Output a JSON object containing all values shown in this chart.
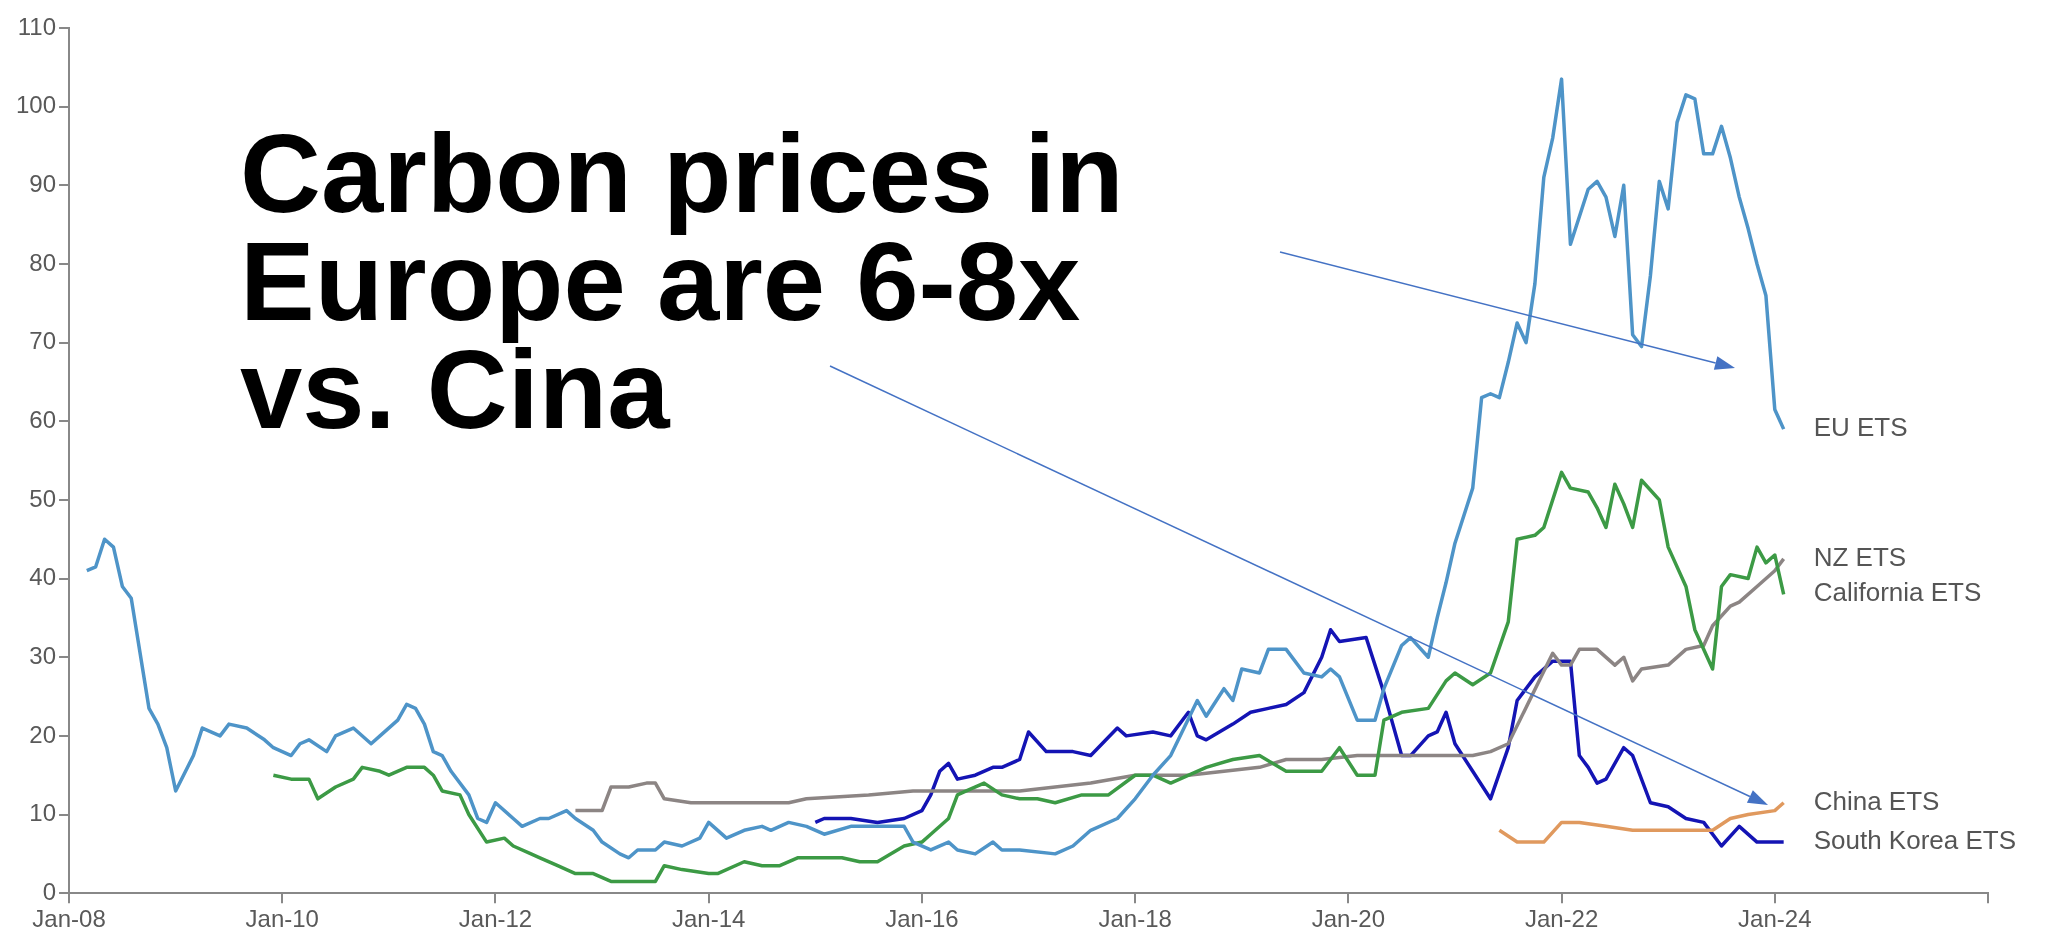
{
  "chart_data": {
    "type": "line",
    "title": "Carbon prices in Europe are 6-8x vs. Cina",
    "xlim": [
      "2008-01",
      "2026-01"
    ],
    "xticks": [
      {
        "value": "2008-01",
        "label": "Jan-08"
      },
      {
        "value": "2010-01",
        "label": "Jan-10"
      },
      {
        "value": "2012-01",
        "label": "Jan-12"
      },
      {
        "value": "2014-01",
        "label": "Jan-14"
      },
      {
        "value": "2016-01",
        "label": "Jan-16"
      },
      {
        "value": "2018-01",
        "label": "Jan-18"
      },
      {
        "value": "2020-01",
        "label": "Jan-20"
      },
      {
        "value": "2022-01",
        "label": "Jan-22"
      },
      {
        "value": "2024-01",
        "label": "Jan-24"
      },
      {
        "value": "2026-01",
        "label": null
      }
    ],
    "ylim": [
      0,
      110
    ],
    "yticks": [
      0,
      10,
      20,
      30,
      40,
      50,
      60,
      70,
      80,
      90,
      100,
      110
    ],
    "grid": false,
    "legend": false,
    "series": [
      {
        "name": "EU ETS",
        "color": "#4e94c8",
        "x": [
          "2008-03",
          "2008-04",
          "2008-05",
          "2008-06",
          "2008-07",
          "2008-08",
          "2008-10",
          "2008-11",
          "2008-12",
          "2009-01",
          "2009-03",
          "2009-04",
          "2009-06",
          "2009-07",
          "2009-09",
          "2009-11",
          "2009-12",
          "2010-02",
          "2010-03",
          "2010-04",
          "2010-06",
          "2010-07",
          "2010-09",
          "2010-11",
          "2010-12",
          "2011-02",
          "2011-03",
          "2011-04",
          "2011-05",
          "2011-06",
          "2011-07",
          "2011-08",
          "2011-10",
          "2011-11",
          "2011-12",
          "2012-01",
          "2012-03",
          "2012-04",
          "2012-06",
          "2012-07",
          "2012-09",
          "2012-10",
          "2012-12",
          "2013-01",
          "2013-03",
          "2013-04",
          "2013-05",
          "2013-07",
          "2013-08",
          "2013-10",
          "2013-12",
          "2014-01",
          "2014-03",
          "2014-05",
          "2014-07",
          "2014-08",
          "2014-10",
          "2014-12",
          "2015-02",
          "2015-05",
          "2015-08",
          "2015-11",
          "2015-12",
          "2016-02",
          "2016-04",
          "2016-05",
          "2016-07",
          "2016-09",
          "2016-10",
          "2016-12",
          "2017-04",
          "2017-06",
          "2017-08",
          "2017-11",
          "2018-01",
          "2018-03",
          "2018-05",
          "2018-08",
          "2018-09",
          "2018-11",
          "2018-12",
          "2019-01",
          "2019-03",
          "2019-04",
          "2019-06",
          "2019-08",
          "2019-10",
          "2019-11",
          "2019-12",
          "2020-02",
          "2020-04",
          "2020-05",
          "2020-07",
          "2020-08",
          "2020-10",
          "2020-11",
          "2020-12",
          "2021-01",
          "2021-03",
          "2021-04",
          "2021-05",
          "2021-06",
          "2021-07",
          "2021-08",
          "2021-09",
          "2021-10",
          "2021-11",
          "2021-12",
          "2022-01",
          "2022-02",
          "2022-04",
          "2022-05",
          "2022-06",
          "2022-07",
          "2022-08",
          "2022-09",
          "2022-10",
          "2022-11",
          "2022-12",
          "2023-01",
          "2023-02",
          "2023-03",
          "2023-04",
          "2023-05",
          "2023-06",
          "2023-07",
          "2023-08",
          "2023-09",
          "2023-10",
          "2023-11",
          "2023-12",
          "2024-01",
          "2024-02"
        ],
        "values": [
          41,
          41.5,
          45,
          44,
          39,
          37.5,
          23.5,
          21.5,
          18.5,
          13,
          17.5,
          21,
          20,
          21.5,
          21,
          19.5,
          18.5,
          17.5,
          19,
          19.5,
          18,
          20,
          21,
          19,
          20,
          22,
          24,
          23.5,
          21.5,
          18,
          17.5,
          15.5,
          12.5,
          9.5,
          9,
          11.5,
          9.5,
          8.5,
          9.5,
          9.5,
          10.5,
          9.5,
          8,
          6.5,
          5,
          4.5,
          5.5,
          5.5,
          6.5,
          6,
          7,
          9,
          7,
          8,
          8.5,
          8,
          9,
          8.5,
          7.5,
          8.5,
          8.5,
          8.5,
          6.5,
          5.5,
          6.5,
          5.5,
          5,
          6.5,
          5.5,
          5.5,
          5,
          6,
          8,
          9.5,
          12,
          15,
          17.5,
          24.5,
          22.5,
          26,
          24.5,
          28.5,
          28,
          31,
          31,
          28,
          27.5,
          28.5,
          27.5,
          22,
          22,
          26,
          31.5,
          32.5,
          30,
          35,
          39.5,
          44.5,
          51.5,
          63,
          63.5,
          63,
          67.5,
          72.5,
          70,
          77.5,
          91,
          96,
          103.5,
          82.5,
          89.5,
          90.5,
          88.5,
          83.5,
          90,
          71,
          69.5,
          78.5,
          90.5,
          87,
          98,
          101.5,
          101,
          94,
          94,
          97.5,
          93.5,
          88.5,
          84.5,
          80,
          76,
          61.5,
          59
        ]
      },
      {
        "name": "California ETS",
        "color": "#3c9a45",
        "x": [
          "2009-12",
          "2010-02",
          "2010-04",
          "2010-05",
          "2010-07",
          "2010-09",
          "2010-10",
          "2010-12",
          "2011-01",
          "2011-03",
          "2011-05",
          "2011-06",
          "2011-07",
          "2011-09",
          "2011-10",
          "2011-12",
          "2012-02",
          "2012-03",
          "2012-05",
          "2012-06",
          "2012-08",
          "2012-10",
          "2012-12",
          "2013-02",
          "2013-04",
          "2013-06",
          "2013-07",
          "2013-08",
          "2013-10",
          "2014-01",
          "2014-02",
          "2014-05",
          "2014-07",
          "2014-09",
          "2014-11",
          "2015-01",
          "2015-04",
          "2015-06",
          "2015-08",
          "2015-11",
          "2016-01",
          "2016-02",
          "2016-04",
          "2016-05",
          "2016-06",
          "2016-08",
          "2016-10",
          "2016-12",
          "2017-02",
          "2017-04",
          "2017-07",
          "2017-10",
          "2018-01",
          "2018-03",
          "2018-05",
          "2018-09",
          "2018-12",
          "2019-03",
          "2019-06",
          "2019-10",
          "2019-12",
          "2020-02",
          "2020-04",
          "2020-05",
          "2020-07",
          "2020-10",
          "2020-12",
          "2021-01",
          "2021-03",
          "2021-05",
          "2021-07",
          "2021-08",
          "2021-10",
          "2021-11",
          "2022-01",
          "2022-02",
          "2022-04",
          "2022-05",
          "2022-06",
          "2022-07",
          "2022-08",
          "2022-09",
          "2022-10",
          "2022-12",
          "2023-01",
          "2023-03",
          "2023-04",
          "2023-06",
          "2023-07",
          "2023-08",
          "2023-10",
          "2023-11",
          "2023-12",
          "2024-01",
          "2024-02"
        ],
        "values": [
          15,
          14.5,
          14.5,
          12,
          13.5,
          14.5,
          16,
          15.5,
          15,
          16,
          16,
          15,
          13,
          12.5,
          10,
          6.5,
          7,
          6,
          5,
          4.5,
          3.5,
          2.5,
          2.5,
          1.5,
          1.5,
          1.5,
          1.5,
          3.5,
          3,
          2.5,
          2.5,
          4,
          3.5,
          3.5,
          4.5,
          4.5,
          4.5,
          4,
          4,
          6,
          6.5,
          7.5,
          9.5,
          12.5,
          13,
          14,
          12.5,
          12,
          12,
          11.5,
          12.5,
          12.5,
          15,
          15,
          14,
          16,
          17,
          17.5,
          15.5,
          15.5,
          18.5,
          15,
          15,
          22,
          23,
          23.5,
          27,
          28,
          26.5,
          28,
          34.5,
          45,
          45.5,
          46.5,
          53.5,
          51.5,
          51,
          49,
          46.5,
          52,
          49.5,
          46.5,
          52.5,
          50,
          44,
          39,
          33.5,
          28.5,
          39,
          40.5,
          40,
          44,
          42,
          43,
          38
        ]
      },
      {
        "name": "NZ ETS",
        "color": "#8c8584",
        "x": [
          "2012-10",
          "2013-01",
          "2013-02",
          "2013-04",
          "2013-06",
          "2013-07",
          "2013-08",
          "2013-11",
          "2014-10",
          "2014-12",
          "2015-07",
          "2015-12",
          "2016-12",
          "2017-08",
          "2018-01",
          "2018-07",
          "2019-03",
          "2019-06",
          "2019-10",
          "2020-02",
          "2020-10",
          "2021-03",
          "2021-05",
          "2021-07",
          "2021-12",
          "2022-01",
          "2022-02",
          "2022-03",
          "2022-05",
          "2022-07",
          "2022-08",
          "2022-09",
          "2022-10",
          "2023-01",
          "2023-03",
          "2023-05",
          "2023-06",
          "2023-08",
          "2023-09",
          "2023-11",
          "2024-01",
          "2024-02"
        ],
        "values": [
          10.5,
          10.5,
          13.5,
          13.5,
          14,
          14,
          12,
          11.5,
          11.5,
          12,
          12.5,
          13,
          13,
          14,
          15,
          15,
          16,
          17,
          17,
          17.5,
          17.5,
          17.5,
          18,
          19,
          30.5,
          29,
          29,
          31,
          31,
          29,
          30,
          27,
          28.5,
          29,
          31,
          31.5,
          34,
          36.5,
          37,
          39,
          41,
          42.5
        ]
      },
      {
        "name": "China ETS",
        "color": "#e0995e",
        "x": [
          "2021-06",
          "2021-08",
          "2021-11",
          "2022-01",
          "2022-03",
          "2022-06",
          "2022-09",
          "2023-01",
          "2023-04",
          "2023-06",
          "2023-08",
          "2023-10",
          "2024-01",
          "2024-02"
        ],
        "values": [
          8,
          6.5,
          6.5,
          9,
          9,
          8.5,
          8,
          8,
          8,
          8,
          9.5,
          10,
          10.5,
          11.5
        ]
      },
      {
        "name": "South Korea ETS",
        "color": "#1414b4",
        "x": [
          "2015-01",
          "2015-02",
          "2015-05",
          "2015-08",
          "2015-11",
          "2016-01",
          "2016-02",
          "2016-03",
          "2016-04",
          "2016-05",
          "2016-07",
          "2016-09",
          "2016-10",
          "2016-12",
          "2017-01",
          "2017-03",
          "2017-06",
          "2017-08",
          "2017-11",
          "2017-12",
          "2018-03",
          "2018-05",
          "2018-07",
          "2018-08",
          "2018-09",
          "2018-12",
          "2019-02",
          "2019-04",
          "2019-06",
          "2019-08",
          "2019-10",
          "2019-11",
          "2019-12",
          "2020-03",
          "2020-05",
          "2020-07",
          "2020-08",
          "2020-10",
          "2020-11",
          "2020-12",
          "2021-01",
          "2021-03",
          "2021-05",
          "2021-07",
          "2021-08",
          "2021-10",
          "2021-12",
          "2022-02",
          "2022-03",
          "2022-04",
          "2022-05",
          "2022-06",
          "2022-08",
          "2022-09",
          "2022-11",
          "2023-01",
          "2023-03",
          "2023-05",
          "2023-07",
          "2023-09",
          "2023-11",
          "2024-02"
        ],
        "values": [
          9,
          9.5,
          9.5,
          9,
          9.5,
          10.5,
          12.5,
          15.5,
          16.5,
          14.5,
          15,
          16,
          16,
          17,
          20.5,
          18,
          18,
          17.5,
          21,
          20,
          20.5,
          20,
          23,
          20,
          19.5,
          21.5,
          23,
          23.5,
          24,
          25.5,
          30,
          33.5,
          32,
          32.5,
          25.5,
          17.5,
          17.5,
          20,
          20.5,
          23,
          19,
          15.5,
          12,
          18.5,
          24.5,
          27.5,
          29.5,
          29.5,
          17.5,
          16,
          14,
          14.5,
          18.5,
          17.5,
          11.5,
          11,
          9.5,
          9,
          6,
          8.5,
          6.5,
          6.5
        ]
      }
    ]
  }
}
